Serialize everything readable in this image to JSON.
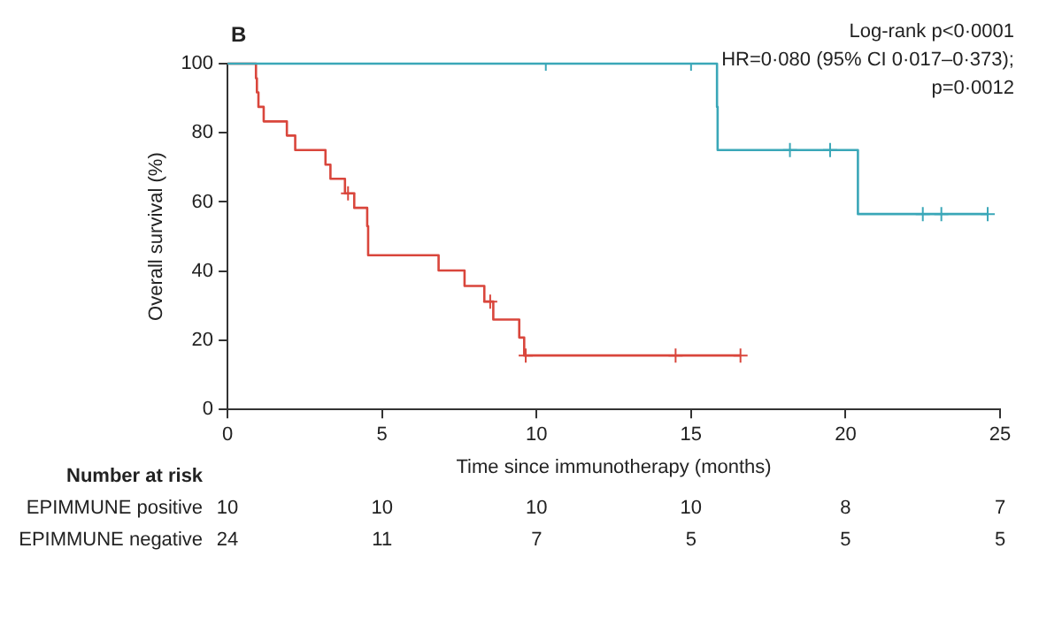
{
  "chart_data": {
    "type": "step",
    "xlabel": "Time since immunotherapy (months)",
    "ylabel": "Overall survival (%)",
    "xlim": [
      0,
      25
    ],
    "xticks": [
      0,
      5,
      10,
      15,
      20,
      25
    ],
    "ylim": [
      0,
      100
    ],
    "yticks": [
      0,
      20,
      40,
      60,
      80,
      100
    ],
    "grid": false,
    "legend": false,
    "line_style": "solid",
    "series": [
      {
        "color": "#3aa7b8",
        "x": [
          0,
          15.84,
          15.86,
          20.4,
          24.6
        ],
        "values": [
          100,
          87.5,
          75,
          56.5,
          56.5
        ],
        "marker": "none"
      },
      {
        "color": "#d9463c",
        "x": [
          0,
          0.92,
          0.95,
          1.0,
          1.17,
          1.92,
          2.19,
          3.17,
          3.33,
          3.8,
          4.1,
          4.52,
          4.55,
          6.83,
          7.67,
          8.31,
          8.6,
          9.44,
          9.6,
          16.6
        ],
        "values": [
          100,
          95.8,
          91.7,
          87.5,
          83.3,
          79.2,
          75,
          70.8,
          66.7,
          62.5,
          58.3,
          53,
          44.6,
          40.2,
          35.7,
          31.2,
          26,
          20.8,
          15.6,
          15.6
        ],
        "marker": "none"
      },
      {
        "type": "scatter",
        "color": "#3aa7b8",
        "x": [
          10.3,
          15.0,
          18.2,
          19.5,
          22.5,
          23.1,
          24.6
        ],
        "values": [
          100,
          100,
          75,
          75,
          56.5,
          56.5,
          56.5
        ],
        "marker": "cross"
      },
      {
        "type": "scatter",
        "color": "#d9463c",
        "x": [
          3.9,
          8.5,
          9.65,
          14.5,
          16.6
        ],
        "values": [
          62.5,
          31.2,
          15.6,
          15.6,
          15.6
        ],
        "marker": "cross"
      }
    ],
    "annotations": [
      "B",
      "Log-rank p<0·0001",
      "HR=0·080 (95% CI 0·017–0·373);",
      "p=0·0012",
      "Number at risk",
      "EPIMMUNE positive",
      "10",
      "10",
      "10",
      "10",
      "8",
      "7",
      "EPIMMUNE negative",
      "24",
      "11",
      "7",
      "5",
      "5",
      "5"
    ]
  }
}
